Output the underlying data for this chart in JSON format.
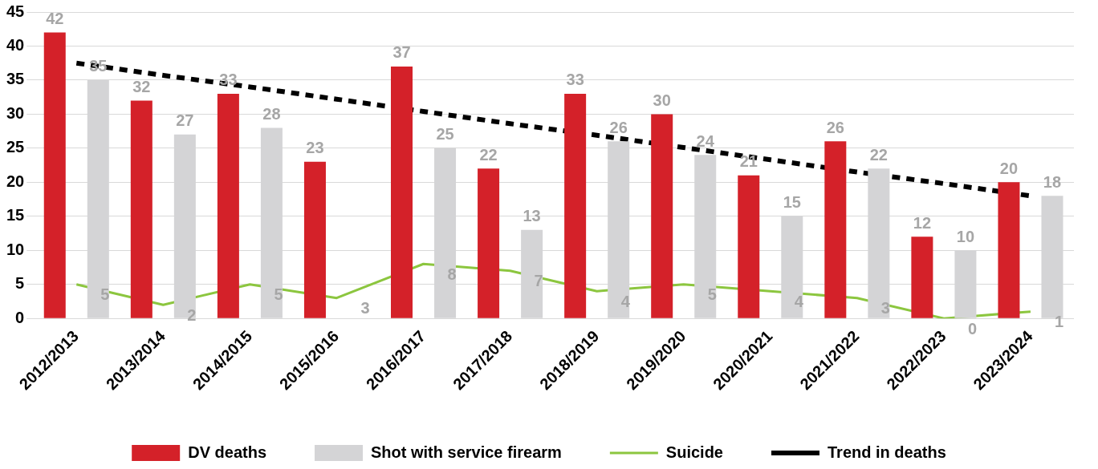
{
  "chart_data": {
    "type": "bar",
    "categories": [
      "2012/2013",
      "2013/2014",
      "2014/2015",
      "2015/2016",
      "2016/2017",
      "2017/2018",
      "2018/2019",
      "2019/2020",
      "2020/2021",
      "2021/2022",
      "2022/2023",
      "2023/2024"
    ],
    "series": [
      {
        "name": "DV deaths",
        "color": "#d42129",
        "values": [
          42,
          32,
          33,
          23,
          37,
          22,
          33,
          30,
          21,
          26,
          12,
          20
        ],
        "value_labels": [
          "42",
          "32",
          "33",
          "23",
          "37",
          "22",
          "33",
          "30",
          "21",
          "26",
          "12",
          "20"
        ]
      },
      {
        "name": "Shot with service firearm",
        "color": "#d4d4d6",
        "values": [
          35,
          27,
          28,
          null,
          25,
          13,
          26,
          24,
          15,
          22,
          10,
          18
        ],
        "value_labels": [
          "35",
          "27",
          "28",
          null,
          "25",
          "13",
          "26",
          "24",
          "15",
          "22",
          "10",
          "18"
        ]
      },
      {
        "name": "Suicide",
        "type": "line",
        "color": "#8cc63f",
        "line_style": "solid",
        "values": [
          5,
          2,
          5,
          3,
          8,
          7,
          4,
          5,
          4,
          3,
          0,
          1
        ],
        "value_labels": [
          "5",
          "2",
          "5",
          "3",
          "8",
          "7",
          "4",
          "5",
          "4",
          "3",
          "0",
          "1"
        ]
      },
      {
        "name": "Trend in deaths",
        "type": "line",
        "color": "#000000",
        "line_style": "dashed",
        "values": [
          37.5,
          35.7,
          34,
          32.2,
          30.4,
          28.6,
          26.9,
          25.1,
          23.3,
          21.5,
          19.8,
          18
        ]
      }
    ],
    "ylim": [
      0,
      45
    ],
    "yticks": [
      0,
      5,
      10,
      15,
      20,
      25,
      30,
      35,
      40,
      45
    ],
    "grid": "y",
    "legend": "bottom",
    "marker": "none"
  }
}
